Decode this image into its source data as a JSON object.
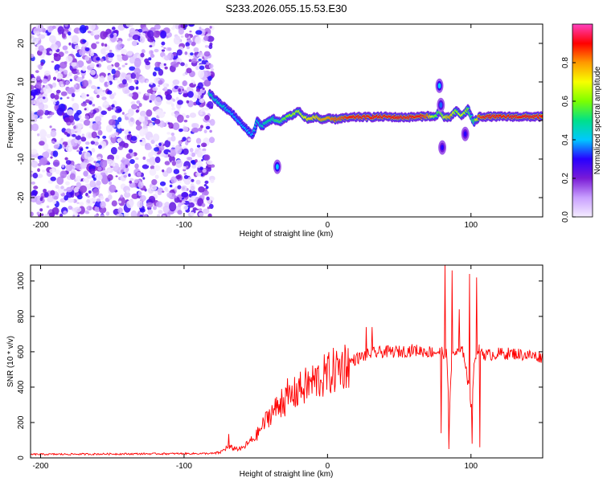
{
  "title": "S233.2026.055.15.53.E30",
  "chart_data": [
    {
      "type": "heatmap",
      "xlabel": "Height of straight line (km)",
      "ylabel": "Frequency (Hz)",
      "xlim": [
        -207,
        150
      ],
      "ylim": [
        -25,
        25
      ],
      "x_ticks": [
        -200,
        -100,
        0,
        100
      ],
      "y_ticks": [
        -20,
        -10,
        0,
        10,
        20
      ],
      "colorbar": {
        "label": "Normalized spectral amplitude",
        "range": [
          0,
          1
        ],
        "ticks": [
          0.0,
          0.2,
          0.4,
          0.6,
          0.8
        ],
        "colors": [
          "#f4ecff",
          "#c9a0ff",
          "#7a1bd6",
          "#2800ff",
          "#00c8ff",
          "#00e08a",
          "#7cff00",
          "#f7ff00",
          "#ff9a00",
          "#ff0000",
          "#ff40c0"
        ]
      },
      "noise_region_x": [
        -207,
        -80
      ],
      "ridge": {
        "x": [
          -82,
          -77,
          -72,
          -67,
          -62,
          -57,
          -52,
          -49,
          -46,
          -42,
          -38,
          -33,
          -28,
          -24,
          -20,
          -16,
          -12,
          -8,
          -4,
          0,
          5,
          10,
          15,
          20,
          30,
          40,
          50,
          60,
          65,
          70,
          75,
          78,
          82,
          86,
          90,
          94,
          98,
          102,
          106,
          110,
          120,
          130,
          140,
          150
        ],
        "y": [
          7,
          5,
          3.5,
          2,
          0,
          -2,
          -4,
          0,
          -1.5,
          -0.5,
          0.5,
          -0.5,
          1,
          1.5,
          2.5,
          0.8,
          0.3,
          1,
          0.2,
          0.5,
          0.3,
          0.6,
          0.7,
          0.9,
          0.9,
          1.0,
          0.8,
          0.9,
          1.0,
          1.2,
          0.8,
          2.5,
          0.6,
          1.0,
          2.5,
          1.2,
          3.0,
          -0.5,
          1.0,
          1.0,
          1.0,
          1.0,
          1.0,
          1.0
        ],
        "amp": [
          0.5,
          0.45,
          0.45,
          0.4,
          0.4,
          0.4,
          0.4,
          0.45,
          0.45,
          0.5,
          0.5,
          0.55,
          0.6,
          0.65,
          0.65,
          0.7,
          0.75,
          0.75,
          0.8,
          0.8,
          0.85,
          0.85,
          0.9,
          0.9,
          0.9,
          0.9,
          0.9,
          0.9,
          0.9,
          0.85,
          0.6,
          0.55,
          0.7,
          0.8,
          0.6,
          0.7,
          0.6,
          0.5,
          0.85,
          0.9,
          0.9,
          0.9,
          0.9,
          0.9
        ]
      },
      "features": [
        {
          "x": -35,
          "y": -12,
          "amp": 0.4
        },
        {
          "x": 78,
          "y": 9,
          "amp": 0.4
        },
        {
          "x": 79,
          "y": 4,
          "amp": 0.35
        },
        {
          "x": 80,
          "y": -7,
          "amp": 0.3
        },
        {
          "x": 96,
          "y": -3.5,
          "amp": 0.3
        }
      ]
    },
    {
      "type": "line",
      "xlabel": "Height of straight line (km)",
      "ylabel": "SNR (10 * v/v)",
      "xlim": [
        -207,
        150
      ],
      "ylim": [
        0,
        1090
      ],
      "x_ticks": [
        -200,
        -100,
        0,
        100
      ],
      "y_ticks": [
        0,
        200,
        400,
        600,
        800,
        1000
      ],
      "color": "#ff0000",
      "envelope": {
        "x": [
          -207,
          -80,
          -75,
          -70,
          -60,
          -50,
          -40,
          -30,
          -20,
          -10,
          0,
          10,
          20,
          30,
          40,
          50,
          60,
          70,
          80,
          83,
          85,
          87,
          90,
          95,
          100,
          103,
          106,
          110,
          120,
          130,
          140,
          150
        ],
        "y": [
          20,
          25,
          30,
          60,
          50,
          120,
          250,
          320,
          380,
          430,
          470,
          520,
          560,
          590,
          600,
          600,
          610,
          600,
          600,
          580,
          250,
          600,
          590,
          600,
          300,
          590,
          620,
          580,
          590,
          590,
          580,
          570
        ]
      },
      "spikes": [
        {
          "x": 82,
          "y": 1090
        },
        {
          "x": 84.5,
          "y": 50
        },
        {
          "x": 87,
          "y": 1060
        },
        {
          "x": 92,
          "y": 840
        },
        {
          "x": 99,
          "y": 1040
        },
        {
          "x": 101,
          "y": 80
        },
        {
          "x": 104,
          "y": 1020
        },
        {
          "x": 106,
          "y": 60
        },
        {
          "x": 79,
          "y": 140
        },
        {
          "x": -69,
          "y": 135
        },
        {
          "x": -32,
          "y": 390
        },
        {
          "x": -28,
          "y": 450
        },
        {
          "x": -20,
          "y": 450
        },
        {
          "x": 27,
          "y": 740
        },
        {
          "x": 31,
          "y": 740
        }
      ]
    }
  ]
}
